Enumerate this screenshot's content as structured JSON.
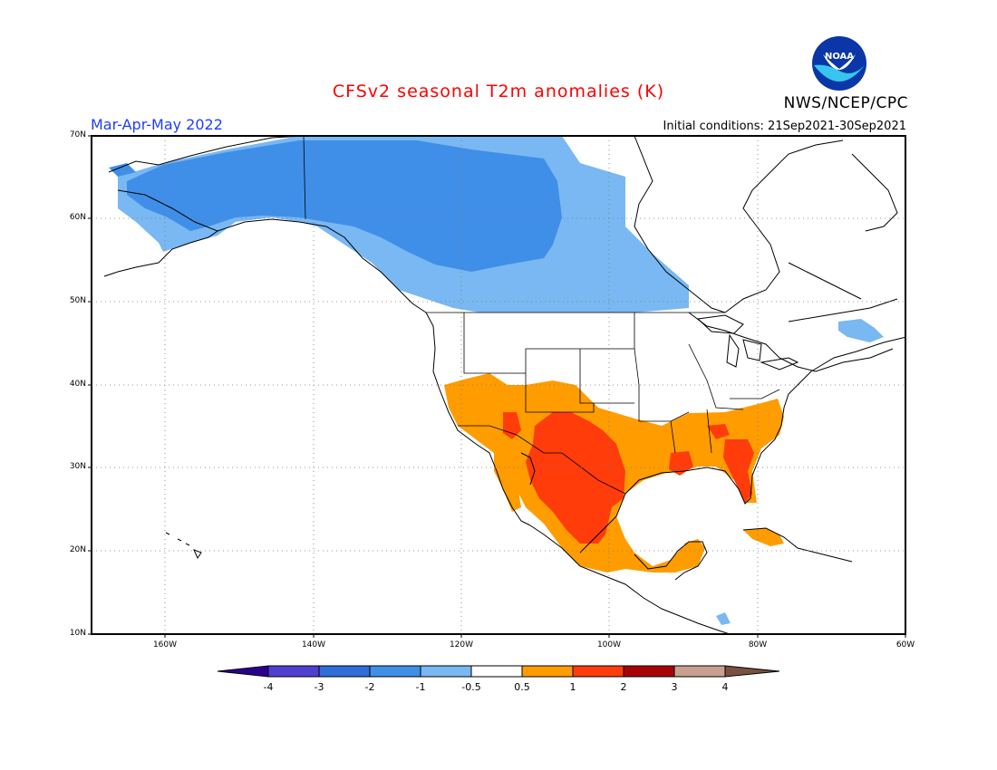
{
  "title": "CFSv2 seasonal T2m anomalies (K)",
  "period": "Mar-Apr-May 2022",
  "initial_conditions": "Initial conditions: 21Sep2021-30Sep2021",
  "agency": "NWS/NCEP/CPC",
  "logo_text": "NOAA",
  "lat_labels": [
    "70N",
    "60N",
    "50N",
    "40N",
    "30N",
    "20N",
    "10N"
  ],
  "lon_labels": [
    "160W",
    "140W",
    "120W",
    "100W",
    "80W",
    "60W"
  ],
  "colorbar": {
    "labels": [
      "-4",
      "-3",
      "-2",
      "-1",
      "-0.5",
      "0.5",
      "1",
      "2",
      "3",
      "4"
    ],
    "colors": [
      "#2a0090",
      "#5040d0",
      "#2f6ed8",
      "#3f8fe8",
      "#79b8f2",
      "#ffffff",
      "#ff9c00",
      "#ff3c0a",
      "#a80008",
      "#c8a090",
      "#7a5040"
    ]
  },
  "anomaly_colors": {
    "cold_1": "#3f8fe8",
    "cold_05": "#79b8f2",
    "warm_05": "#ff9c00",
    "warm_1": "#ff3c0a"
  }
}
